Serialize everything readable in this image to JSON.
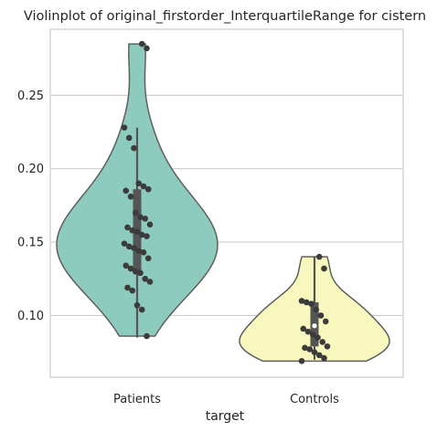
{
  "chart_data": {
    "type": "violin",
    "title": "Violinplot of original_firstorder_InterquartileRange for cistern",
    "xlabel": "target",
    "ylabel": "",
    "categories": [
      "Patients",
      "Controls"
    ],
    "ylim": [
      0.058,
      0.295
    ],
    "yticks": [
      0.1,
      0.15,
      0.2,
      0.25
    ],
    "ytick_labels": [
      "0.10",
      "0.15",
      "0.20",
      "0.25"
    ],
    "grid": true,
    "colors": {
      "Patients": "#8ecbbf",
      "Controls": "#f8f7bd",
      "violin_edge": "#5f5f5f",
      "box": "#555555",
      "points": "#3b3b3b",
      "grid": "#cccccc"
    },
    "series": [
      {
        "category": "Patients",
        "box": {
          "whisker_low": 0.085,
          "q1": 0.13,
          "median": 0.157,
          "q3": 0.186,
          "whisker_high": 0.228
        },
        "points": [
          0.285,
          0.282,
          0.228,
          0.221,
          0.214,
          0.19,
          0.188,
          0.186,
          0.185,
          0.181,
          0.17,
          0.167,
          0.166,
          0.162,
          0.16,
          0.158,
          0.157,
          0.155,
          0.154,
          0.149,
          0.147,
          0.146,
          0.144,
          0.143,
          0.139,
          0.134,
          0.132,
          0.13,
          0.129,
          0.125,
          0.123,
          0.119,
          0.117,
          0.107,
          0.104,
          0.086
        ]
      },
      {
        "category": "Controls",
        "box": {
          "whisker_low": 0.07,
          "q1": 0.079,
          "median": 0.093,
          "q3": 0.109,
          "whisker_high": 0.14
        },
        "points": [
          0.14,
          0.132,
          0.11,
          0.109,
          0.108,
          0.104,
          0.1,
          0.096,
          0.091,
          0.089,
          0.087,
          0.085,
          0.082,
          0.079,
          0.078,
          0.077,
          0.075,
          0.073,
          0.071,
          0.069
        ]
      }
    ]
  }
}
